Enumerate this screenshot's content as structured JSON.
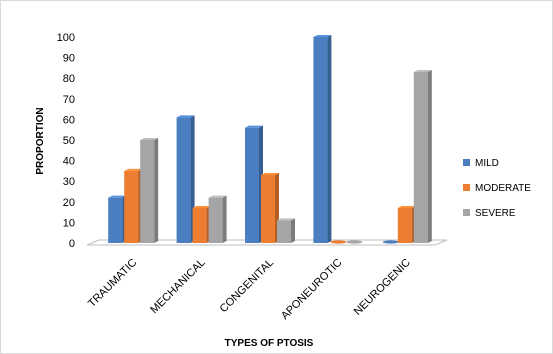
{
  "chart_data": {
    "type": "bar",
    "title": "",
    "xlabel": "TYPES OF PTOSIS",
    "ylabel": "PROPORTION",
    "ylim": [
      0,
      100
    ],
    "yticks": [
      0,
      10,
      20,
      30,
      40,
      50,
      60,
      70,
      80,
      90,
      100
    ],
    "grid": false,
    "legend_position": "right",
    "categories": [
      "TRAUMATIC",
      "MECHANICAL",
      "CONGENITAL",
      "APONEUROTIC",
      "NEUROGENIC"
    ],
    "series": [
      {
        "name": "MILD",
        "color": "#4a7ec1",
        "values": [
          22,
          61,
          56,
          100,
          0
        ]
      },
      {
        "name": "MODERATE",
        "color": "#ed7d31",
        "values": [
          35,
          17,
          33,
          0,
          17
        ]
      },
      {
        "name": "SEVERE",
        "color": "#a5a5a5",
        "values": [
          50,
          22,
          11,
          0,
          83
        ]
      }
    ]
  }
}
